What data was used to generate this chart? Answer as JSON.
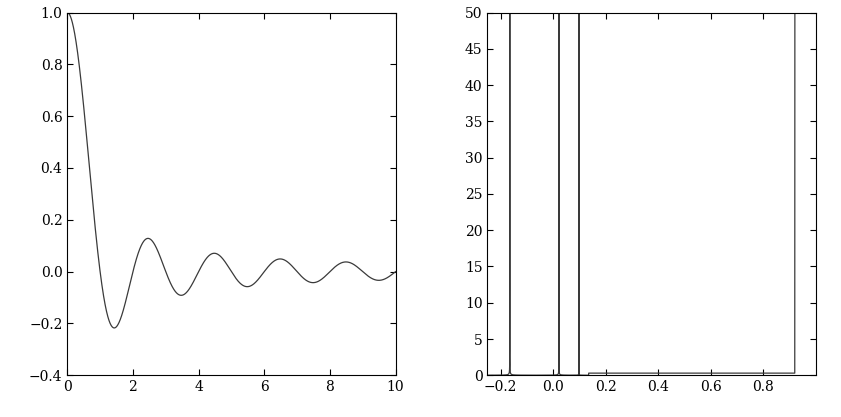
{
  "left_xlim": [
    0,
    10
  ],
  "left_ylim": [
    -0.4,
    1.0
  ],
  "left_xticks": [
    0,
    2,
    4,
    6,
    8,
    10
  ],
  "left_yticks": [
    -0.4,
    -0.2,
    0,
    0.2,
    0.4,
    0.6,
    0.8,
    1.0
  ],
  "right_xlim": [
    -0.25,
    1.0
  ],
  "right_ylim": [
    0,
    50
  ],
  "right_xticks": [
    -0.2,
    0,
    0.2,
    0.4,
    0.6,
    0.8
  ],
  "right_yticks": [
    0,
    5,
    10,
    15,
    20,
    25,
    30,
    35,
    40,
    45,
    50
  ],
  "line_color": "#3a3a3a",
  "line_width": 0.9,
  "bg_color": "#ffffff",
  "r": 0.5,
  "figsize": [
    8.41,
    4.17
  ],
  "dpi": 100
}
